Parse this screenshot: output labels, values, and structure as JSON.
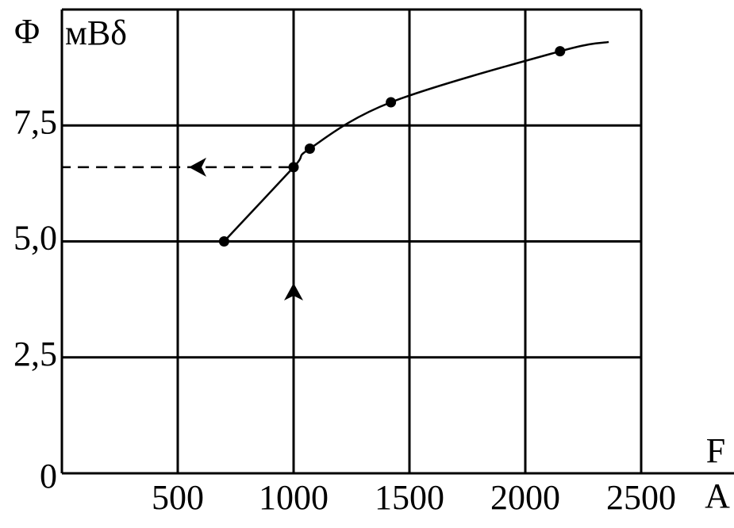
{
  "chart_data": {
    "type": "line",
    "y_label": "Φ",
    "y_unit": "мВδ",
    "x_label": "F",
    "x_unit": "A",
    "points": {
      "x": [
        700,
        1000,
        1070,
        1420,
        2150
      ],
      "y": [
        5.0,
        6.6,
        7.0,
        8.0,
        9.1
      ]
    },
    "curve_end": {
      "x": 2360,
      "y": 9.3
    },
    "reading": {
      "x": 1000,
      "y": 6.6
    },
    "color": "#000000",
    "xlim": [
      0,
      2500
    ],
    "ylim": [
      0,
      10
    ],
    "xticks": [
      500,
      1000,
      1500,
      2000,
      2500
    ],
    "yticks": [
      0,
      {
        "value": 2.5,
        "label": "2,5"
      },
      {
        "value": 5.0,
        "label": "5,0"
      },
      {
        "value": 7.5,
        "label": "7,5"
      },
      {
        "value": 10,
        "label": ""
      }
    ],
    "grid": true
  }
}
